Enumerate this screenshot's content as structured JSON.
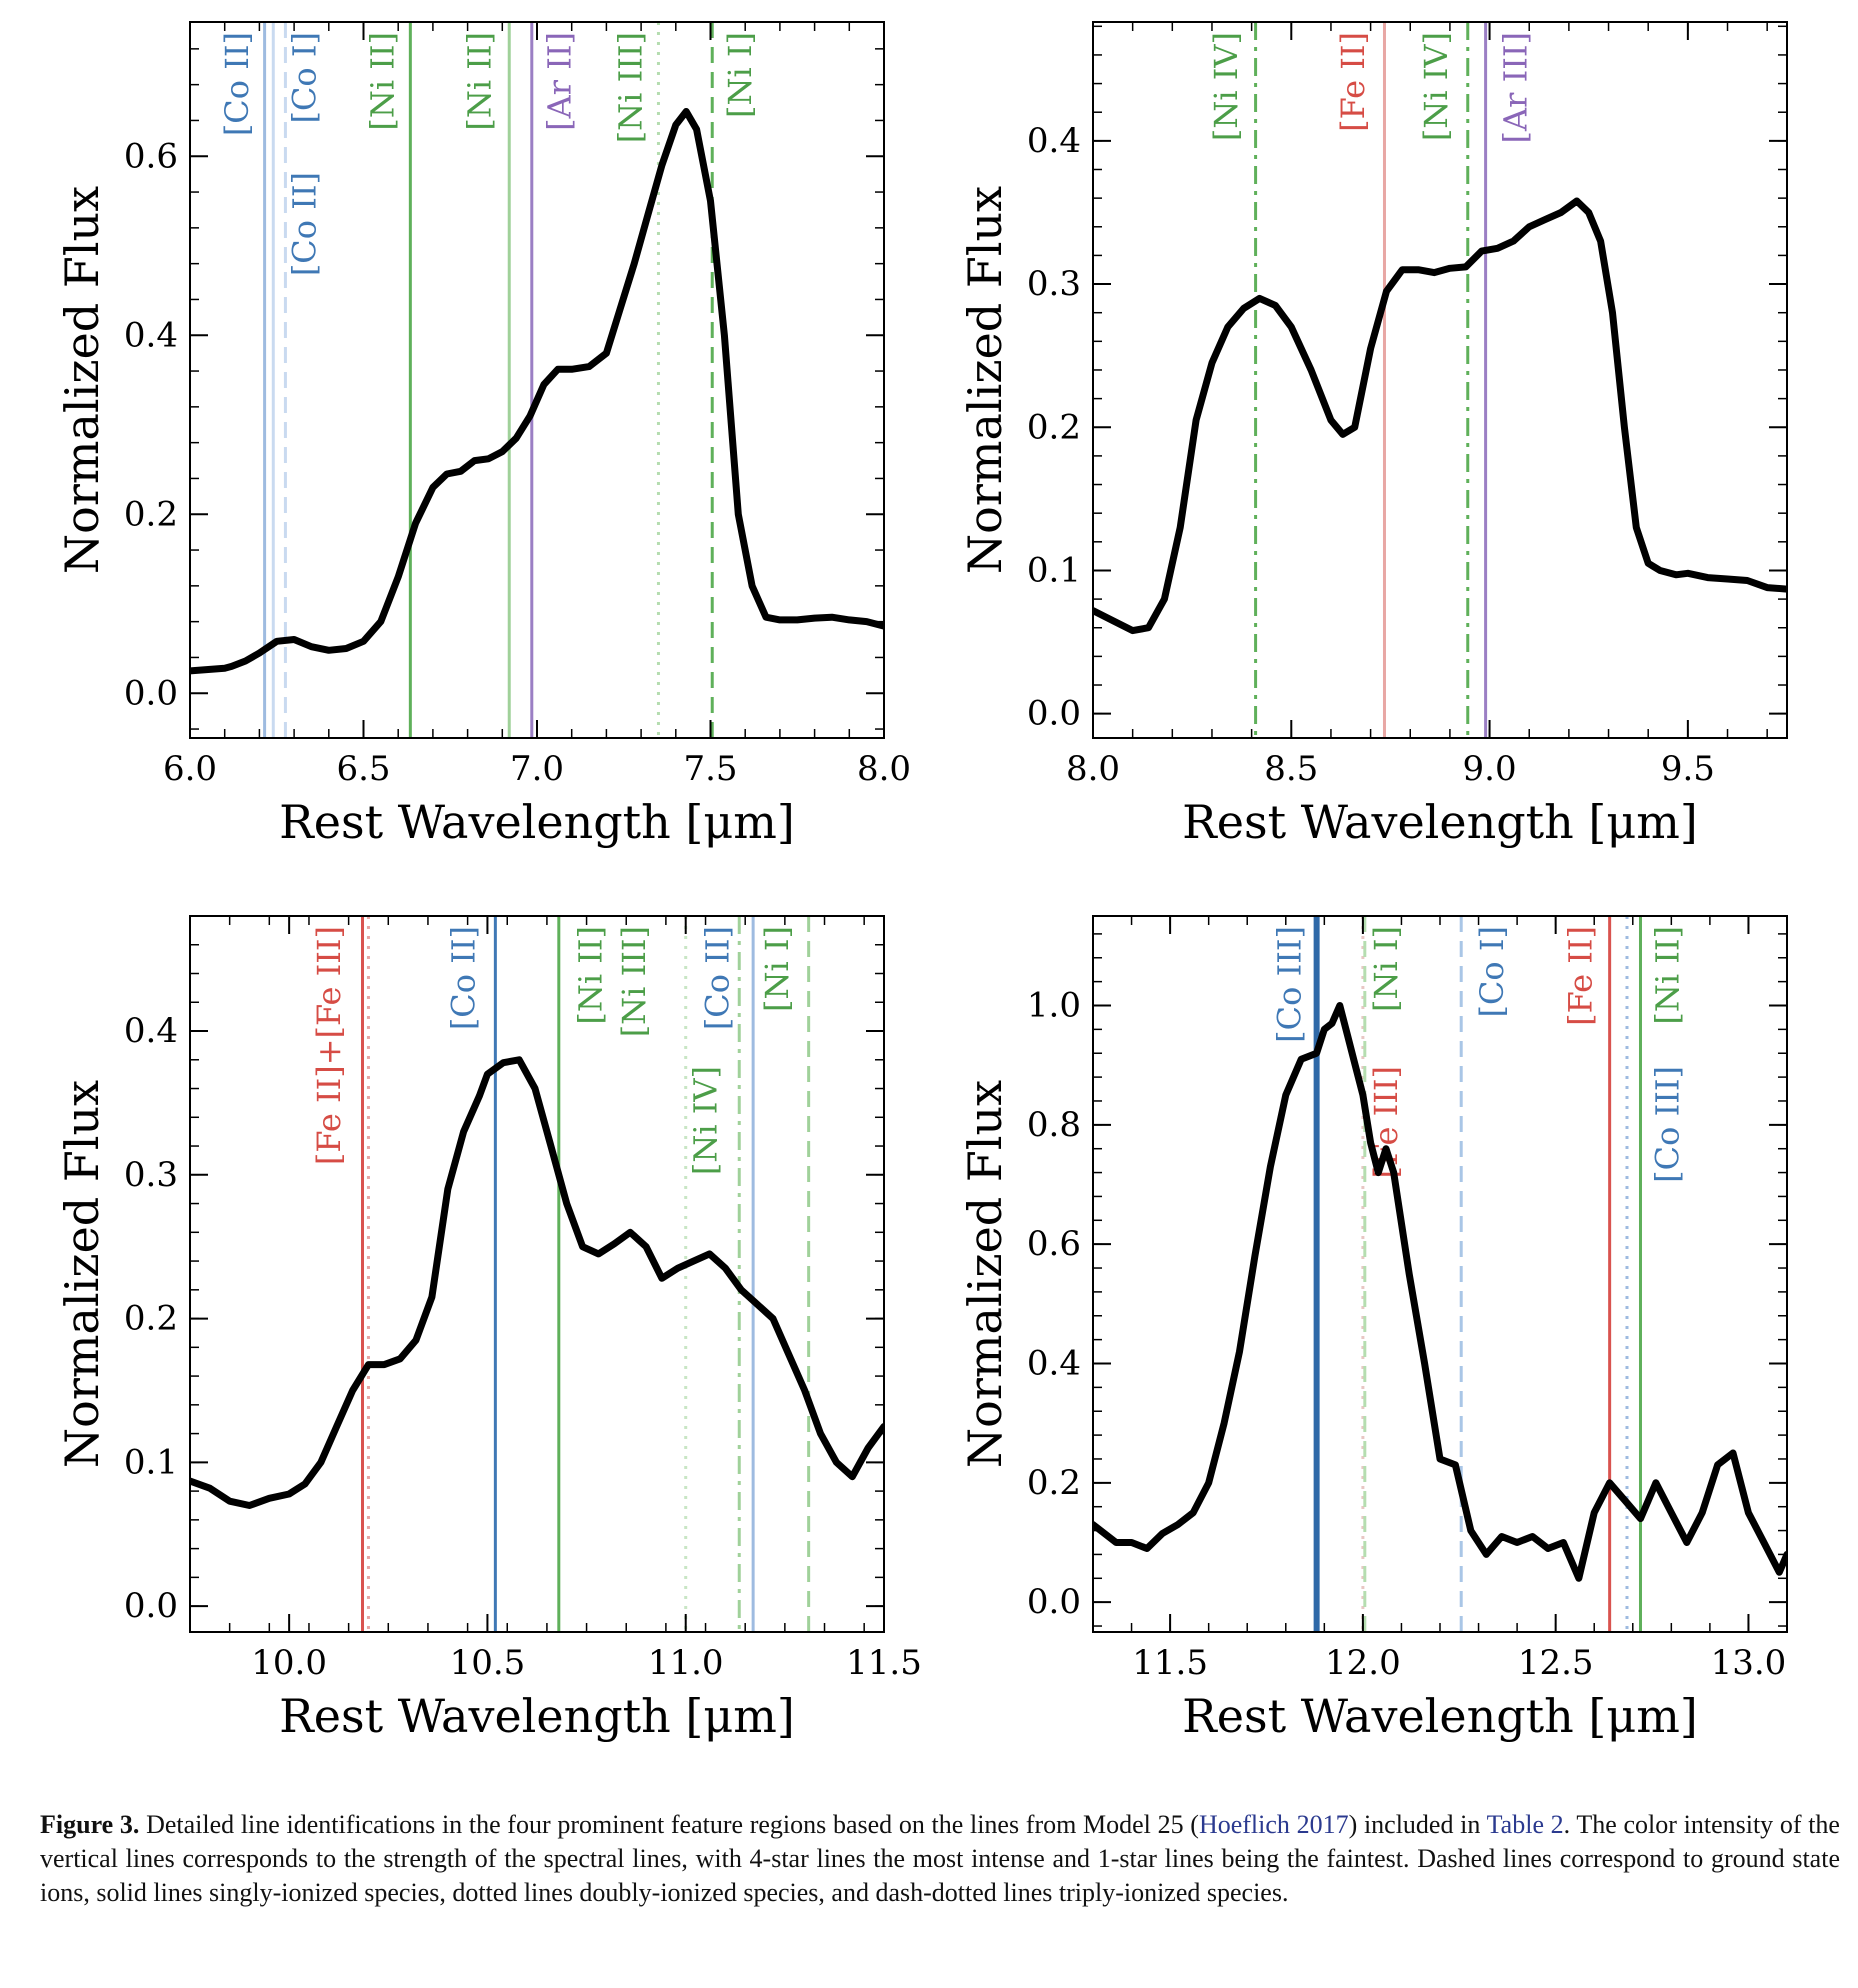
{
  "figure": {
    "caption_label": "Figure 3.",
    "caption_part1": "Detailed line identifications in the four prominent feature regions based on the lines from Model 25 (",
    "caption_cite": "Hoeflich 2017",
    "caption_part2": ") included in ",
    "caption_table": "Table 2",
    "caption_part3": ". The color intensity of the vertical lines corresponds to the strength of the spectral lines, with 4-star lines the most intense and 1-star lines being the faintest. Dashed lines correspond to ground state ions, solid lines singly-ionized species, dotted lines doubly-ionized species, and dash-dotted lines triply-ionized species."
  },
  "chart_data": [
    {
      "type": "line",
      "xlabel": "Rest Wavelength [μm]",
      "ylabel": "Normalized Flux",
      "xlim": [
        6.0,
        8.0
      ],
      "ylim": [
        -0.05,
        0.75
      ],
      "xticks": [
        {
          "v": 6.0,
          "label": "6.0"
        },
        {
          "v": 6.5,
          "label": "6.5"
        },
        {
          "v": 7.0,
          "label": "7.0"
        },
        {
          "v": 7.5,
          "label": "7.5"
        },
        {
          "v": 8.0,
          "label": "8.0"
        }
      ],
      "yticks": [
        {
          "v": 0.0,
          "label": "0.0"
        },
        {
          "v": 0.2,
          "label": "0.2"
        },
        {
          "v": 0.4,
          "label": "0.4"
        },
        {
          "v": 0.6,
          "label": "0.6"
        }
      ],
      "series": [
        {
          "x": [
            6.0,
            6.1,
            6.12,
            6.16,
            6.2,
            6.25,
            6.3,
            6.35,
            6.4,
            6.45,
            6.5,
            6.55,
            6.6,
            6.65,
            6.7,
            6.74,
            6.78,
            6.82,
            6.86,
            6.9,
            6.94,
            6.98,
            7.02,
            7.06,
            7.1,
            7.15,
            7.2,
            7.24,
            7.28,
            7.32,
            7.36,
            7.4,
            7.43,
            7.46,
            7.5,
            7.54,
            7.58,
            7.62,
            7.66,
            7.7,
            7.75,
            7.8,
            7.85,
            7.9,
            7.95,
            8.0
          ],
          "y": [
            0.025,
            0.028,
            0.03,
            0.036,
            0.045,
            0.058,
            0.06,
            0.052,
            0.048,
            0.05,
            0.058,
            0.08,
            0.13,
            0.19,
            0.23,
            0.245,
            0.248,
            0.26,
            0.262,
            0.27,
            0.285,
            0.31,
            0.345,
            0.362,
            0.362,
            0.365,
            0.38,
            0.43,
            0.48,
            0.535,
            0.59,
            0.635,
            0.65,
            0.63,
            0.55,
            0.4,
            0.2,
            0.12,
            0.085,
            0.082,
            0.082,
            0.084,
            0.085,
            0.082,
            0.08,
            0.075
          ]
        }
      ],
      "lines": [
        {
          "x": 6.215,
          "color": "#9ebbe0",
          "style": "solid",
          "width": 3
        },
        {
          "x": 6.24,
          "color": "#c9daf0",
          "style": "solid",
          "width": 3
        },
        {
          "x": 6.275,
          "color": "#c9daf0",
          "style": "dashed",
          "width": 3
        },
        {
          "x": 6.635,
          "color": "#5fb05a",
          "style": "solid",
          "width": 3
        },
        {
          "x": 6.92,
          "color": "#a0d19a",
          "style": "solid",
          "width": 3
        },
        {
          "x": 6.985,
          "color": "#9b7fc4",
          "style": "solid",
          "width": 3
        },
        {
          "x": 7.35,
          "color": "#b5ddb0",
          "style": "dotted",
          "width": 3
        },
        {
          "x": 7.505,
          "color": "#5fb05a",
          "style": "dashed",
          "width": 3
        }
      ],
      "labels": [
        {
          "x": 6.135,
          "text": "[Co II]",
          "color": "#3f78b5"
        },
        {
          "x": 6.33,
          "text": "[Co I]",
          "color": "#3f78b5"
        },
        {
          "x": 6.33,
          "text": "[Co II]",
          "color": "#3f78b5",
          "low": true
        },
        {
          "x": 6.555,
          "text": "[Ni II]",
          "color": "#4c9e48"
        },
        {
          "x": 6.835,
          "text": "[Ni II]",
          "color": "#4c9e48"
        },
        {
          "x": 7.065,
          "text": "[Ar II]",
          "color": "#8a66b8"
        },
        {
          "x": 7.27,
          "text": "[Ni III]",
          "color": "#4c9e48"
        },
        {
          "x": 7.585,
          "text": "[Ni I]",
          "color": "#4c9e48"
        }
      ]
    },
    {
      "type": "line",
      "xlabel": "Rest Wavelength [μm]",
      "ylabel": "Normalized Flux",
      "xlim": [
        8.0,
        9.75
      ],
      "ylim": [
        -0.017,
        0.483
      ],
      "xticks": [
        {
          "v": 8.0,
          "label": "8.0"
        },
        {
          "v": 8.5,
          "label": "8.5"
        },
        {
          "v": 9.0,
          "label": "9.0"
        },
        {
          "v": 9.5,
          "label": "9.5"
        }
      ],
      "yticks": [
        {
          "v": 0.0,
          "label": "0.0"
        },
        {
          "v": 0.1,
          "label": "0.1"
        },
        {
          "v": 0.2,
          "label": "0.2"
        },
        {
          "v": 0.3,
          "label": "0.3"
        },
        {
          "v": 0.4,
          "label": "0.4"
        }
      ],
      "series": [
        {
          "x": [
            8.0,
            8.05,
            8.1,
            8.14,
            8.18,
            8.22,
            8.26,
            8.3,
            8.34,
            8.38,
            8.42,
            8.46,
            8.5,
            8.55,
            8.6,
            8.63,
            8.66,
            8.7,
            8.74,
            8.78,
            8.82,
            8.86,
            8.9,
            8.94,
            8.98,
            9.02,
            9.06,
            9.1,
            9.14,
            9.18,
            9.22,
            9.25,
            9.28,
            9.31,
            9.34,
            9.37,
            9.4,
            9.43,
            9.47,
            9.5,
            9.55,
            9.6,
            9.65,
            9.7,
            9.75
          ],
          "y": [
            0.072,
            0.065,
            0.058,
            0.06,
            0.08,
            0.13,
            0.205,
            0.245,
            0.27,
            0.283,
            0.29,
            0.285,
            0.27,
            0.24,
            0.205,
            0.195,
            0.2,
            0.255,
            0.295,
            0.31,
            0.31,
            0.308,
            0.311,
            0.312,
            0.323,
            0.325,
            0.33,
            0.34,
            0.345,
            0.35,
            0.358,
            0.35,
            0.33,
            0.28,
            0.2,
            0.13,
            0.105,
            0.1,
            0.097,
            0.098,
            0.095,
            0.094,
            0.093,
            0.088,
            0.087
          ]
        }
      ],
      "lines": [
        {
          "x": 8.41,
          "color": "#5fb05a",
          "style": "dashdot",
          "width": 3
        },
        {
          "x": 8.735,
          "color": "#e8a7a4",
          "style": "solid",
          "width": 3
        },
        {
          "x": 8.945,
          "color": "#5fb05a",
          "style": "dashdot",
          "width": 3
        },
        {
          "x": 8.99,
          "color": "#9b7fc4",
          "style": "solid",
          "width": 3
        }
      ],
      "labels": [
        {
          "x": 8.335,
          "text": "[Ni IV]",
          "color": "#4c9e48"
        },
        {
          "x": 8.655,
          "text": "[Fe II]",
          "color": "#d64c45"
        },
        {
          "x": 8.865,
          "text": "[Ni IV]",
          "color": "#4c9e48"
        },
        {
          "x": 9.065,
          "text": "[Ar III]",
          "color": "#8a66b8"
        }
      ]
    },
    {
      "type": "line",
      "xlabel": "Rest Wavelength [μm]",
      "ylabel": "Normalized Flux",
      "xlim": [
        9.75,
        11.5
      ],
      "ylim": [
        -0.018,
        0.48
      ],
      "xticks": [
        {
          "v": 10.0,
          "label": "10.0"
        },
        {
          "v": 10.5,
          "label": "10.5"
        },
        {
          "v": 11.0,
          "label": "11.0"
        },
        {
          "v": 11.5,
          "label": "11.5"
        }
      ],
      "yticks": [
        {
          "v": 0.0,
          "label": "0.0"
        },
        {
          "v": 0.1,
          "label": "0.1"
        },
        {
          "v": 0.2,
          "label": "0.2"
        },
        {
          "v": 0.3,
          "label": "0.3"
        },
        {
          "v": 0.4,
          "label": "0.4"
        }
      ],
      "series": [
        {
          "x": [
            9.75,
            9.8,
            9.85,
            9.9,
            9.95,
            10.0,
            10.04,
            10.08,
            10.12,
            10.16,
            10.2,
            10.24,
            10.28,
            10.32,
            10.36,
            10.4,
            10.44,
            10.48,
            10.5,
            10.54,
            10.58,
            10.62,
            10.66,
            10.7,
            10.74,
            10.78,
            10.82,
            10.86,
            10.9,
            10.94,
            10.98,
            11.02,
            11.06,
            11.1,
            11.14,
            11.18,
            11.22,
            11.26,
            11.3,
            11.34,
            11.38,
            11.42,
            11.46,
            11.5
          ],
          "y": [
            0.087,
            0.082,
            0.073,
            0.07,
            0.075,
            0.078,
            0.085,
            0.1,
            0.125,
            0.15,
            0.168,
            0.168,
            0.172,
            0.185,
            0.215,
            0.29,
            0.33,
            0.355,
            0.37,
            0.378,
            0.38,
            0.36,
            0.32,
            0.28,
            0.25,
            0.245,
            0.252,
            0.26,
            0.25,
            0.228,
            0.235,
            0.24,
            0.245,
            0.235,
            0.22,
            0.21,
            0.2,
            0.175,
            0.15,
            0.12,
            0.1,
            0.09,
            0.11,
            0.125
          ]
        }
      ],
      "lines": [
        {
          "x": 10.185,
          "color": "#d9534f",
          "style": "solid",
          "width": 3
        },
        {
          "x": 10.2,
          "color": "#e8a7a4",
          "style": "dotted",
          "width": 3
        },
        {
          "x": 10.52,
          "color": "#3f78b5",
          "style": "solid",
          "width": 3
        },
        {
          "x": 10.68,
          "color": "#5fb05a",
          "style": "solid",
          "width": 3
        },
        {
          "x": 11.0,
          "color": "#c9e6c5",
          "style": "dotted",
          "width": 3
        },
        {
          "x": 11.135,
          "color": "#a0d19a",
          "style": "dashdot",
          "width": 3
        },
        {
          "x": 11.17,
          "color": "#9ebbe0",
          "style": "solid",
          "width": 3
        },
        {
          "x": 11.31,
          "color": "#a0d19a",
          "style": "dashed",
          "width": 3
        }
      ],
      "labels": [
        {
          "x": 10.1,
          "text": "[Fe II]+[Fe III]",
          "color": "#d64c45"
        },
        {
          "x": 10.44,
          "text": "[Co II]",
          "color": "#3f78b5"
        },
        {
          "x": 10.76,
          "text": "[Ni II]",
          "color": "#4c9e48"
        },
        {
          "x": 10.87,
          "text": "[Ni III]",
          "color": "#4c9e48"
        },
        {
          "x": 11.05,
          "text": "[Ni IV]",
          "color": "#4c9e48",
          "low": true
        },
        {
          "x": 11.08,
          "text": "[Co II]",
          "color": "#3f78b5"
        },
        {
          "x": 11.23,
          "text": "[Ni I]",
          "color": "#4c9e48"
        }
      ]
    },
    {
      "type": "line",
      "xlabel": "Rest Wavelength [μm]",
      "ylabel": "Normalized Flux",
      "xlim": [
        11.3,
        13.1
      ],
      "ylim": [
        -0.05,
        1.15
      ],
      "xticks": [
        {
          "v": 11.5,
          "label": "11.5"
        },
        {
          "v": 12.0,
          "label": "12.0"
        },
        {
          "v": 12.5,
          "label": "12.5"
        },
        {
          "v": 13.0,
          "label": "13.0"
        }
      ],
      "yticks": [
        {
          "v": 0.0,
          "label": "0.0"
        },
        {
          "v": 0.2,
          "label": "0.2"
        },
        {
          "v": 0.4,
          "label": "0.4"
        },
        {
          "v": 0.6,
          "label": "0.6"
        },
        {
          "v": 0.8,
          "label": "0.8"
        },
        {
          "v": 1.0,
          "label": "1.0"
        }
      ],
      "series": [
        {
          "x": [
            11.3,
            11.36,
            11.4,
            11.44,
            11.48,
            11.52,
            11.56,
            11.6,
            11.64,
            11.68,
            11.72,
            11.76,
            11.8,
            11.84,
            11.88,
            11.9,
            11.92,
            11.94,
            11.96,
            11.98,
            12.0,
            12.02,
            12.04,
            12.06,
            12.08,
            12.12,
            12.16,
            12.2,
            12.24,
            12.28,
            12.32,
            12.36,
            12.4,
            12.44,
            12.48,
            12.52,
            12.56,
            12.6,
            12.64,
            12.68,
            12.72,
            12.76,
            12.8,
            12.84,
            12.88,
            12.92,
            12.96,
            13.0,
            13.04,
            13.08,
            13.1
          ],
          "y": [
            0.13,
            0.1,
            0.1,
            0.09,
            0.115,
            0.13,
            0.15,
            0.2,
            0.3,
            0.42,
            0.58,
            0.73,
            0.85,
            0.91,
            0.92,
            0.96,
            0.97,
            1.0,
            0.95,
            0.9,
            0.85,
            0.77,
            0.72,
            0.76,
            0.72,
            0.55,
            0.4,
            0.24,
            0.23,
            0.12,
            0.08,
            0.11,
            0.1,
            0.11,
            0.09,
            0.1,
            0.04,
            0.15,
            0.2,
            0.17,
            0.14,
            0.2,
            0.15,
            0.1,
            0.15,
            0.23,
            0.25,
            0.15,
            0.1,
            0.05,
            0.08
          ]
        }
      ],
      "lines": [
        {
          "x": 11.88,
          "color": "#2f69a8",
          "style": "solid",
          "width": 6
        },
        {
          "x": 12.0,
          "color": "#e8c7c5",
          "style": "dotted",
          "width": 3
        },
        {
          "x": 12.005,
          "color": "#b5ddb0",
          "style": "dashed",
          "width": 3
        },
        {
          "x": 12.255,
          "color": "#a9c6e6",
          "style": "dashed",
          "width": 3
        },
        {
          "x": 12.64,
          "color": "#d9534f",
          "style": "solid",
          "width": 3
        },
        {
          "x": 12.685,
          "color": "#9ebbe0",
          "style": "dotted",
          "width": 3
        },
        {
          "x": 12.72,
          "color": "#5fb05a",
          "style": "solid",
          "width": 3
        }
      ],
      "labels": [
        {
          "x": 11.81,
          "text": "[Co III]",
          "color": "#3f78b5"
        },
        {
          "x": 12.06,
          "text": "[Ni I]",
          "color": "#4c9e48"
        },
        {
          "x": 12.06,
          "text": "[Fe III]",
          "color": "#d64c45",
          "low": true
        },
        {
          "x": 12.335,
          "text": "[Co I]",
          "color": "#3f78b5"
        },
        {
          "x": 12.565,
          "text": "[Fe II]",
          "color": "#d64c45"
        },
        {
          "x": 12.79,
          "text": "[Ni II]",
          "color": "#4c9e48"
        },
        {
          "x": 12.79,
          "text": "[Co III]",
          "color": "#3f78b5",
          "low": true
        }
      ]
    }
  ]
}
